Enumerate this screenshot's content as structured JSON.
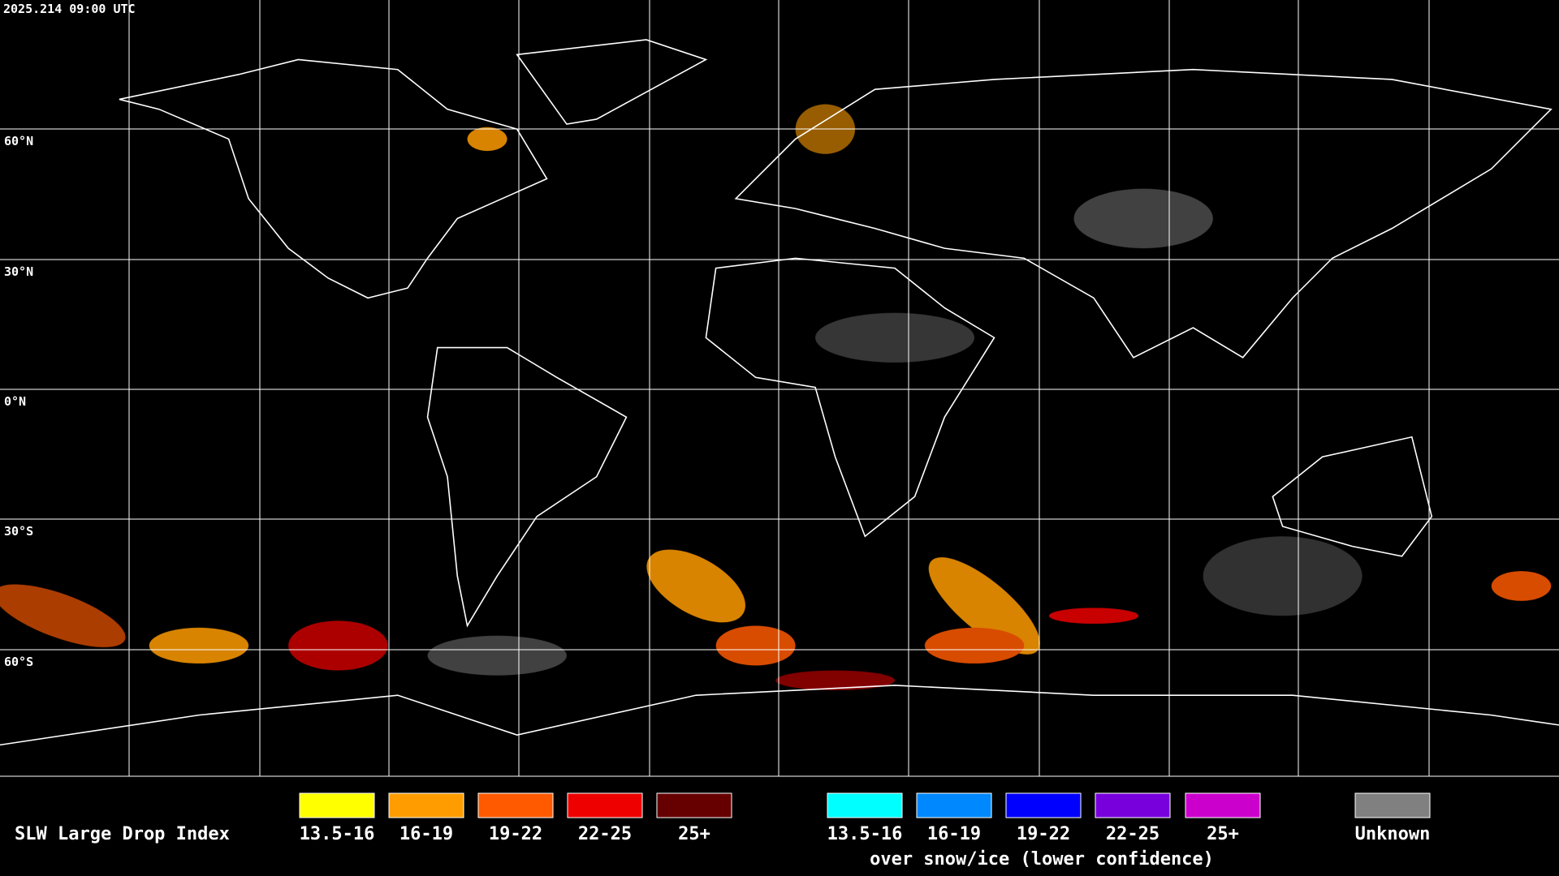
{
  "header": {
    "timestamp": "2025.214 09:00 UTC"
  },
  "map": {
    "latitude_labels": [
      "60°N",
      "30°N",
      "0°N",
      "30°S",
      "60°S"
    ]
  },
  "legend": {
    "title": "SLW Large Drop Index",
    "items": [
      {
        "label": "13.5-16",
        "color": "#ffff00"
      },
      {
        "label": "16-19",
        "color": "#ff9c00"
      },
      {
        "label": "19-22",
        "color": "#ff5a00"
      },
      {
        "label": "22-25",
        "color": "#ee0000"
      },
      {
        "label": "25+",
        "color": "#660000"
      }
    ],
    "snow_ice_items": [
      {
        "label": "13.5-16",
        "color": "#00ffff"
      },
      {
        "label": "16-19",
        "color": "#0088ff"
      },
      {
        "label": "19-22",
        "color": "#0000ff"
      },
      {
        "label": "22-25",
        "color": "#7700dd"
      },
      {
        "label": "25+",
        "color": "#cc00cc"
      }
    ],
    "snow_ice_caption": "over snow/ice (lower confidence)",
    "unknown": {
      "label": "Unknown",
      "color": "#808080"
    }
  }
}
